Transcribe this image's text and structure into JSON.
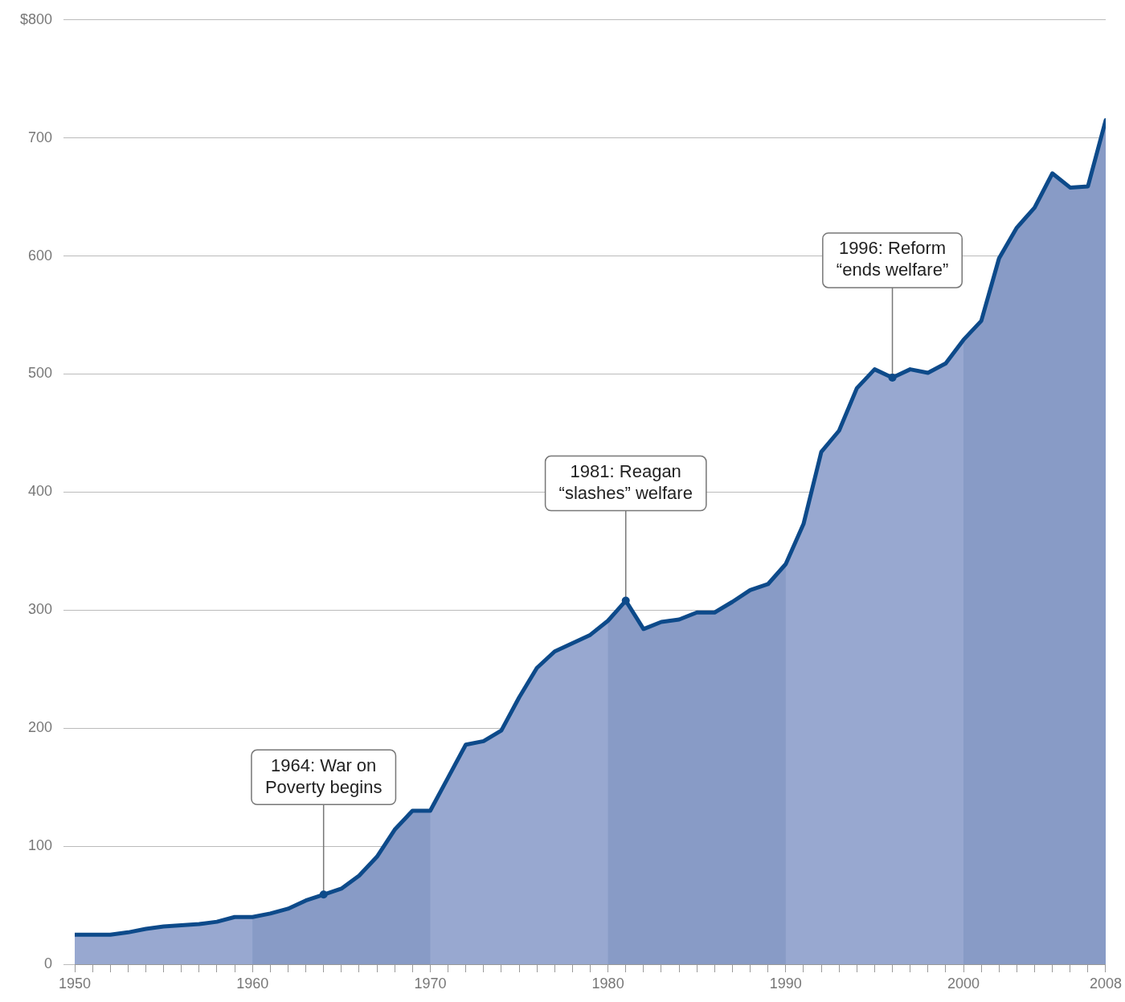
{
  "chart_data": {
    "type": "area",
    "x": [
      1950,
      1951,
      1952,
      1953,
      1954,
      1955,
      1956,
      1957,
      1958,
      1959,
      1960,
      1961,
      1962,
      1963,
      1964,
      1965,
      1966,
      1967,
      1968,
      1969,
      1970,
      1971,
      1972,
      1973,
      1974,
      1975,
      1976,
      1977,
      1978,
      1979,
      1980,
      1981,
      1982,
      1983,
      1984,
      1985,
      1986,
      1987,
      1988,
      1989,
      1990,
      1991,
      1992,
      1993,
      1994,
      1995,
      1996,
      1997,
      1998,
      1999,
      2000,
      2001,
      2002,
      2003,
      2004,
      2005,
      2006,
      2007,
      2008
    ],
    "series": [
      {
        "color": "#98a8d0",
        "values": [
          25,
          25,
          25,
          27,
          30,
          32,
          33,
          34,
          36,
          40,
          40,
          43,
          47,
          54,
          59,
          64,
          75,
          91,
          114,
          130,
          130,
          158,
          186,
          189,
          198,
          226,
          251,
          265,
          272,
          279,
          291,
          308,
          284,
          290,
          292,
          298,
          298,
          307,
          317,
          322,
          339,
          373,
          434,
          452,
          488,
          504,
          497,
          504,
          501,
          509,
          529,
          545,
          598,
          624,
          641,
          670,
          658,
          659,
          715
        ]
      }
    ],
    "xlim": [
      1950,
      2008
    ],
    "xticks": [
      1950,
      {
        "value": 1951,
        "label": null
      },
      {
        "value": 1952,
        "label": null
      },
      {
        "value": 1953,
        "label": null
      },
      {
        "value": 1954,
        "label": null
      },
      {
        "value": 1955,
        "label": null
      },
      {
        "value": 1956,
        "label": null
      },
      {
        "value": 1957,
        "label": null
      },
      {
        "value": 1958,
        "label": null
      },
      {
        "value": 1959,
        "label": null
      },
      1960,
      {
        "value": 1961,
        "label": null
      },
      {
        "value": 1962,
        "label": null
      },
      {
        "value": 1963,
        "label": null
      },
      {
        "value": 1964,
        "label": null
      },
      {
        "value": 1965,
        "label": null
      },
      {
        "value": 1966,
        "label": null
      },
      {
        "value": 1967,
        "label": null
      },
      {
        "value": 1968,
        "label": null
      },
      {
        "value": 1969,
        "label": null
      },
      1970,
      {
        "value": 1971,
        "label": null
      },
      {
        "value": 1972,
        "label": null
      },
      {
        "value": 1973,
        "label": null
      },
      {
        "value": 1974,
        "label": null
      },
      {
        "value": 1975,
        "label": null
      },
      {
        "value": 1976,
        "label": null
      },
      {
        "value": 1977,
        "label": null
      },
      {
        "value": 1978,
        "label": null
      },
      {
        "value": 1979,
        "label": null
      },
      1980,
      {
        "value": 1981,
        "label": null
      },
      {
        "value": 1982,
        "label": null
      },
      {
        "value": 1983,
        "label": null
      },
      {
        "value": 1984,
        "label": null
      },
      {
        "value": 1985,
        "label": null
      },
      {
        "value": 1986,
        "label": null
      },
      {
        "value": 1987,
        "label": null
      },
      {
        "value": 1988,
        "label": null
      },
      {
        "value": 1989,
        "label": null
      },
      1990,
      {
        "value": 1991,
        "label": null
      },
      {
        "value": 1992,
        "label": null
      },
      {
        "value": 1993,
        "label": null
      },
      {
        "value": 1994,
        "label": null
      },
      {
        "value": 1995,
        "label": null
      },
      {
        "value": 1996,
        "label": null
      },
      {
        "value": 1997,
        "label": null
      },
      {
        "value": 1998,
        "label": null
      },
      {
        "value": 1999,
        "label": null
      },
      2000,
      {
        "value": 2001,
        "label": null
      },
      {
        "value": 2002,
        "label": null
      },
      {
        "value": 2003,
        "label": null
      },
      {
        "value": 2004,
        "label": null
      },
      {
        "value": 2005,
        "label": null
      },
      {
        "value": 2006,
        "label": null
      },
      {
        "value": 2007,
        "label": null
      },
      2008
    ],
    "ylim": [
      0,
      800
    ],
    "yticks": [
      0,
      100,
      200,
      300,
      400,
      500,
      600,
      700,
      {
        "value": 800,
        "label": "$800"
      }
    ],
    "grid": "y",
    "legend": false,
    "marker": "none",
    "line_style": "solid",
    "bands": [
      {
        "axis": "x",
        "from": 1960,
        "to": 1970,
        "color": "#889bc6"
      },
      {
        "axis": "x",
        "from": 1980,
        "to": 1990,
        "color": "#889bc6"
      },
      {
        "axis": "x",
        "from": 2000,
        "to": 2008,
        "color": "#889bc6"
      }
    ],
    "annotations": [
      {
        "text": "1964: War on\nPoverty begins",
        "x": 1964,
        "y": 59
      },
      {
        "text": "1981: Reagan\n“slashes” welfare",
        "x": 1981,
        "y": 308
      },
      {
        "text": "1996: Reform\n“ends welfare”",
        "x": 1996,
        "y": 497
      }
    ]
  }
}
